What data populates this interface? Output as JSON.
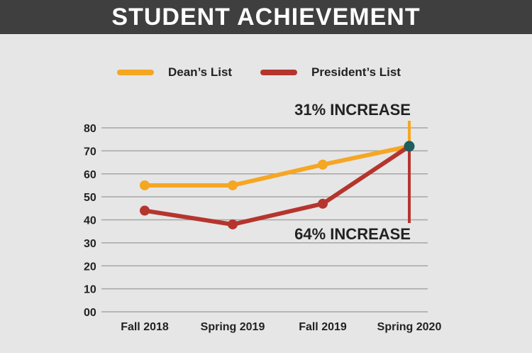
{
  "title": "STUDENT ACHIEVEMENT",
  "chart_data": {
    "type": "line",
    "title": "STUDENT ACHIEVEMENT",
    "categories": [
      "Fall 2018",
      "Spring 2019",
      "Fall 2019",
      "Spring 2020"
    ],
    "y_tick_labels": [
      "00",
      "10",
      "20",
      "30",
      "40",
      "50",
      "60",
      "70",
      "80"
    ],
    "ylim": [
      0,
      80
    ],
    "grid": true,
    "legend_position": "top",
    "series": [
      {
        "name": "Dean’s List",
        "color": "#f5a623",
        "values": [
          55,
          55,
          64,
          72
        ]
      },
      {
        "name": "President’s List",
        "color": "#b5352e",
        "values": [
          44,
          38,
          47,
          72
        ]
      }
    ],
    "marker_color": "#1e5e5e",
    "annotations": [
      {
        "text": "31% INCREASE",
        "series": "Dean’s List",
        "category": "Spring 2020"
      },
      {
        "text": "64% INCREASE",
        "series": "President’s List",
        "category": "Spring 2020"
      }
    ]
  }
}
